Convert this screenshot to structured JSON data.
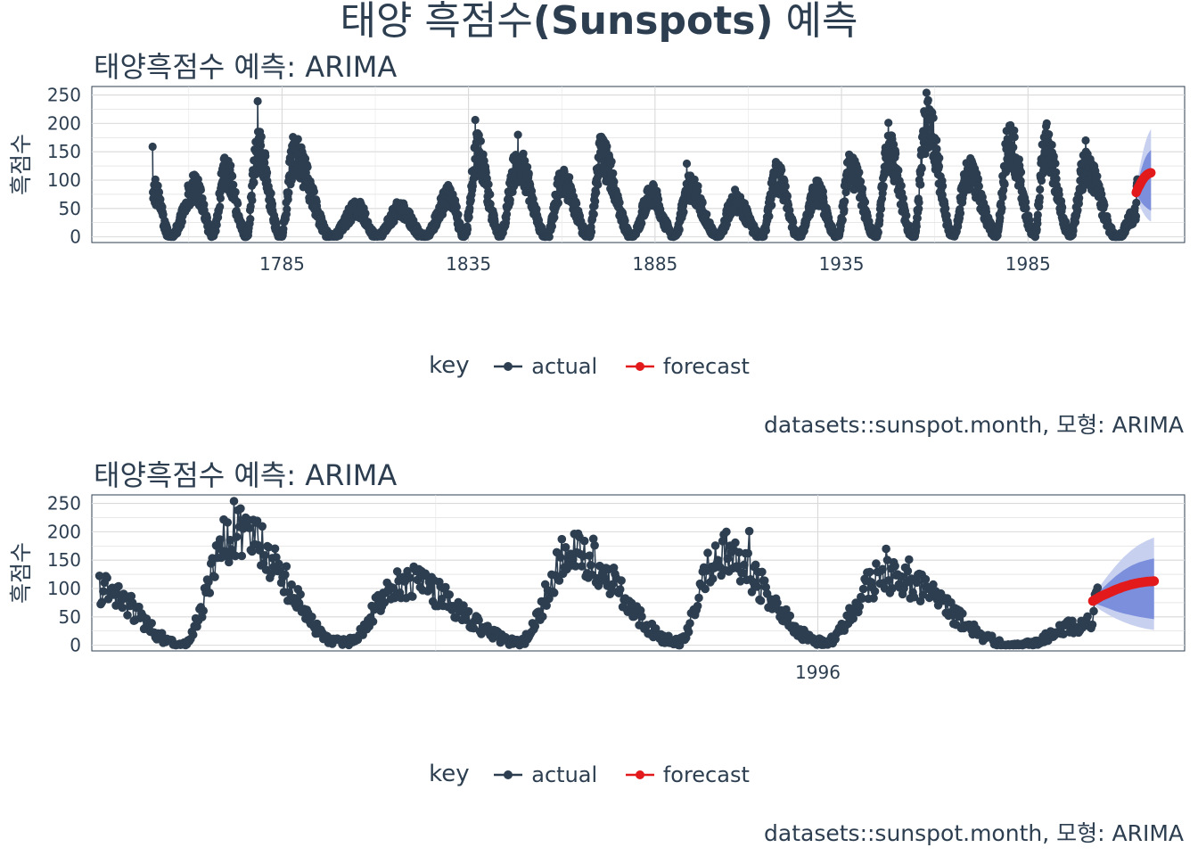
{
  "page": {
    "title_prefix": "태양 흑점수",
    "title_bold": "(Sunspots)",
    "title_suffix": " 예측"
  },
  "chart_data": [
    {
      "type": "line",
      "title": "태양흑점수 예측: ARIMA",
      "ylabel": "흑점수",
      "xlabel": "",
      "caption": "datasets::sunspot.month, 모형: ARIMA",
      "legend_title": "key",
      "legend_position": "bottom",
      "grid": true,
      "xlim": [
        1734,
        2027
      ],
      "ylim": [
        -10,
        265
      ],
      "x_ticks": [
        "1785",
        "1835",
        "1885",
        "1935",
        "1985"
      ],
      "y_ticks": [
        "0",
        "50",
        "100",
        "150",
        "200",
        "250"
      ],
      "colors": {
        "actual": "#2c3e50",
        "forecast": "#e31a1c",
        "band_80": "#7b8fdc",
        "band_95": "#c8d0f0"
      },
      "series": [
        {
          "name": "actual",
          "color": "#2c3e50",
          "cycle_peaks": [
            {
              "x": 1750.3,
              "y": 86
            },
            {
              "x": 1761.5,
              "y": 86
            },
            {
              "x": 1769.7,
              "y": 116
            },
            {
              "x": 1778.4,
              "y": 155
            },
            {
              "x": 1788.1,
              "y": 141
            },
            {
              "x": 1805.2,
              "y": 49
            },
            {
              "x": 1816.4,
              "y": 48
            },
            {
              "x": 1829.9,
              "y": 71
            },
            {
              "x": 1837.2,
              "y": 146
            },
            {
              "x": 1848.1,
              "y": 131
            },
            {
              "x": 1860.1,
              "y": 98
            },
            {
              "x": 1870.6,
              "y": 140
            },
            {
              "x": 1883.9,
              "y": 74
            },
            {
              "x": 1894.1,
              "y": 88
            },
            {
              "x": 1906.2,
              "y": 64
            },
            {
              "x": 1917.6,
              "y": 105
            },
            {
              "x": 1928.4,
              "y": 78
            },
            {
              "x": 1937.4,
              "y": 119
            },
            {
              "x": 1947.5,
              "y": 152
            },
            {
              "x": 1957.9,
              "y": 201
            },
            {
              "x": 1968.9,
              "y": 111
            },
            {
              "x": 1979.9,
              "y": 165
            },
            {
              "x": 1989.6,
              "y": 159
            },
            {
              "x": 2000.3,
              "y": 121
            },
            {
              "x": 2014.3,
              "y": 82
            }
          ],
          "cycle_minima": [
            {
              "x": 1755.2,
              "y": 0
            },
            {
              "x": 1766.5,
              "y": 4
            },
            {
              "x": 1775.5,
              "y": 2
            },
            {
              "x": 1784.7,
              "y": 2
            },
            {
              "x": 1798.3,
              "y": 0
            },
            {
              "x": 1810.6,
              "y": 0
            },
            {
              "x": 1823.3,
              "y": 0
            },
            {
              "x": 1833.9,
              "y": 2
            },
            {
              "x": 1843.5,
              "y": 4
            },
            {
              "x": 1856.0,
              "y": 1
            },
            {
              "x": 1867.2,
              "y": 2
            },
            {
              "x": 1878.9,
              "y": 0
            },
            {
              "x": 1890.2,
              "y": 1
            },
            {
              "x": 1902.0,
              "y": 0
            },
            {
              "x": 1913.6,
              "y": 0
            },
            {
              "x": 1923.6,
              "y": 0
            },
            {
              "x": 1933.8,
              "y": 0
            },
            {
              "x": 1944.2,
              "y": 2
            },
            {
              "x": 1954.3,
              "y": 0
            },
            {
              "x": 1964.9,
              "y": 4
            },
            {
              "x": 1976.5,
              "y": 6
            },
            {
              "x": 1986.8,
              "y": 6
            },
            {
              "x": 1996.4,
              "y": 4
            },
            {
              "x": 2008.9,
              "y": 0
            }
          ],
          "spikes": [
            {
              "x": 1749.0,
              "y": 159
            },
            {
              "x": 1778.5,
              "y": 239
            },
            {
              "x": 1836.8,
              "y": 206
            },
            {
              "x": 1848.3,
              "y": 180
            },
            {
              "x": 1870.3,
              "y": 176
            },
            {
              "x": 1893.5,
              "y": 129
            },
            {
              "x": 1947.6,
              "y": 201
            },
            {
              "x": 1957.8,
              "y": 254
            },
            {
              "x": 1990.0,
              "y": 200
            },
            {
              "x": 2000.5,
              "y": 170
            }
          ],
          "end": {
            "x": 2013.8,
            "y": 38
          }
        },
        {
          "name": "forecast",
          "color": "#e31a1c",
          "points": [
            {
              "x": 2014.0,
              "y": 78
            },
            {
              "x": 2014.5,
              "y": 86
            },
            {
              "x": 2015.0,
              "y": 92
            },
            {
              "x": 2015.5,
              "y": 98
            },
            {
              "x": 2016.0,
              "y": 103
            },
            {
              "x": 2016.5,
              "y": 107
            },
            {
              "x": 2017.0,
              "y": 110
            },
            {
              "x": 2017.5,
              "y": 112
            },
            {
              "x": 2018.0,
              "y": 113
            }
          ],
          "lo_80": [
            75,
            70,
            65,
            60,
            56,
            53,
            50,
            48,
            46
          ],
          "hi_80": [
            82,
            97,
            110,
            122,
            132,
            140,
            146,
            150,
            153
          ],
          "lo_95": [
            72,
            62,
            54,
            47,
            41,
            36,
            32,
            29,
            27
          ],
          "hi_95": [
            85,
            106,
            124,
            140,
            155,
            167,
            177,
            184,
            190
          ]
        }
      ]
    },
    {
      "type": "line",
      "title": "태양흑점수 예측: ARIMA",
      "ylabel": "흑점수",
      "xlabel": "",
      "caption": "datasets::sunspot.month, 모형: ARIMA",
      "legend_title": "key",
      "legend_position": "bottom",
      "grid": true,
      "xlim": [
        1948.5,
        2020.0
      ],
      "ylim": [
        -10,
        265
      ],
      "x_ticks": [
        "1996"
      ],
      "y_ticks": [
        "0",
        "50",
        "100",
        "150",
        "200",
        "250"
      ],
      "series": [
        {
          "name": "actual",
          "color": "#2c3e50",
          "cycle_peaks": [
            {
              "x": 1957.9,
              "y": 201
            },
            {
              "x": 1968.9,
              "y": 111
            },
            {
              "x": 1979.9,
              "y": 165
            },
            {
              "x": 1989.6,
              "y": 159
            },
            {
              "x": 2000.3,
              "y": 121
            },
            {
              "x": 2014.3,
              "y": 82
            }
          ],
          "cycle_minima": [
            {
              "x": 1954.3,
              "y": 0
            },
            {
              "x": 1964.9,
              "y": 4
            },
            {
              "x": 1976.5,
              "y": 6
            },
            {
              "x": 1986.8,
              "y": 6
            },
            {
              "x": 1996.4,
              "y": 4
            },
            {
              "x": 2008.9,
              "y": 0
            }
          ],
          "spikes": [
            {
              "x": 1957.8,
              "y": 254
            },
            {
              "x": 1959.2,
              "y": 216
            },
            {
              "x": 1990.0,
              "y": 200
            },
            {
              "x": 1991.5,
              "y": 201
            },
            {
              "x": 2000.5,
              "y": 170
            },
            {
              "x": 2002.0,
              "y": 151
            }
          ],
          "start": {
            "x": 1949.0,
            "y": 100
          },
          "end": {
            "x": 2013.8,
            "y": 38
          }
        },
        {
          "name": "forecast",
          "color": "#e31a1c",
          "points": [
            {
              "x": 2014.0,
              "y": 78
            },
            {
              "x": 2014.5,
              "y": 86
            },
            {
              "x": 2015.0,
              "y": 92
            },
            {
              "x": 2015.5,
              "y": 98
            },
            {
              "x": 2016.0,
              "y": 103
            },
            {
              "x": 2016.5,
              "y": 107
            },
            {
              "x": 2017.0,
              "y": 110
            },
            {
              "x": 2017.5,
              "y": 112
            },
            {
              "x": 2018.0,
              "y": 113
            }
          ],
          "lo_80": [
            75,
            70,
            65,
            60,
            56,
            53,
            50,
            48,
            46
          ],
          "hi_80": [
            82,
            97,
            110,
            122,
            132,
            140,
            146,
            150,
            153
          ],
          "lo_95": [
            72,
            62,
            54,
            47,
            41,
            36,
            32,
            29,
            27
          ],
          "hi_95": [
            85,
            106,
            124,
            140,
            155,
            167,
            177,
            184,
            190
          ]
        }
      ]
    }
  ]
}
